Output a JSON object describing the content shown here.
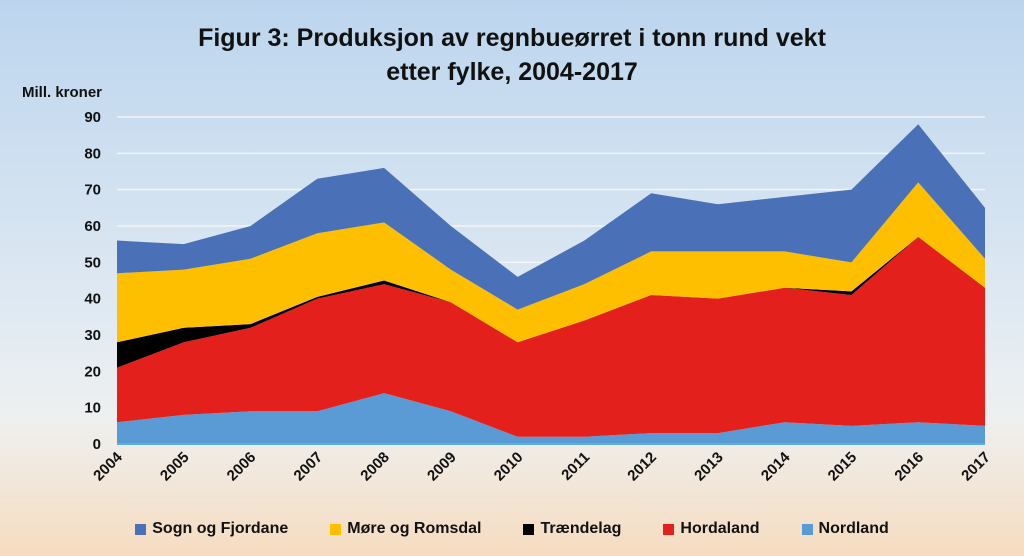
{
  "chart_data": {
    "type": "area",
    "stacked": true,
    "title_line1": "Figur 3: Produksjon av regnbueørret i tonn rund vekt",
    "title_line2": "etter fylke, 2004-2017",
    "ylabel": "Mill. kroner",
    "xlabel": "",
    "ylim": [
      0,
      90
    ],
    "yticks": [
      0,
      10,
      20,
      30,
      40,
      50,
      60,
      70,
      80,
      90
    ],
    "grid": true,
    "legend_position": "bottom",
    "categories": [
      "2004",
      "2005",
      "2006",
      "2007",
      "2008",
      "2009",
      "2010",
      "2011",
      "2012",
      "2013",
      "2014",
      "2015",
      "2016",
      "2017"
    ],
    "series": [
      {
        "name": "Nordland",
        "color": "#5b9bd5",
        "values": [
          6,
          8,
          9,
          9,
          14,
          9,
          2,
          2,
          3,
          3,
          6,
          5,
          6,
          5
        ]
      },
      {
        "name": "Hordaland",
        "color": "#e3201b",
        "values": [
          15,
          20,
          23,
          31,
          30,
          30,
          26,
          32,
          38,
          37,
          37,
          36,
          51,
          38
        ]
      },
      {
        "name": "Trændelag",
        "color": "#000000",
        "values": [
          7,
          4,
          1,
          0.5,
          1,
          0,
          0,
          0,
          0,
          0,
          0,
          1,
          0,
          0
        ]
      },
      {
        "name": "Møre og Romsdal",
        "color": "#fdbf00",
        "values": [
          19,
          16,
          18,
          17.5,
          16,
          9,
          9,
          10,
          12,
          13,
          10,
          8,
          15,
          8
        ]
      },
      {
        "name": "Sogn og Fjordane",
        "color": "#4a71b8",
        "values": [
          9,
          7,
          9,
          15,
          15,
          12,
          9,
          12,
          16,
          13,
          15,
          20,
          16,
          14
        ]
      }
    ],
    "legend_order": [
      "Sogn og Fjordane",
      "Møre og Romsdal",
      "Trændelag",
      "Hordaland",
      "Nordland"
    ]
  }
}
